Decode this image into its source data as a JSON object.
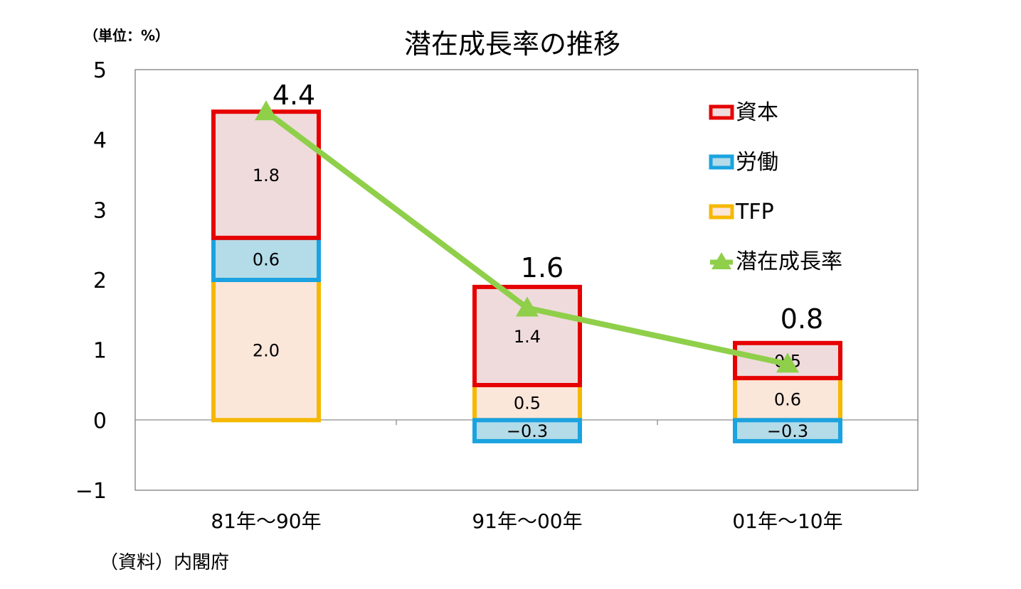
{
  "chart_data": {
    "type": "bar",
    "stacked": true,
    "title": "潜在成長率の推移",
    "unit_label": "（単位：%）",
    "source": "（資料）内閣府",
    "categories": [
      "81年～90年",
      "91年～00年",
      "01年～10年"
    ],
    "yticks": [
      "5",
      "4",
      "3",
      "2",
      "1",
      "0",
      "−1"
    ],
    "ylim": [
      -1,
      5
    ],
    "series": [
      {
        "name": "TFP",
        "values": [
          2.0,
          0.5,
          0.6
        ],
        "labels": [
          "2.0",
          "0.5",
          "0.6"
        ],
        "edge": "#f5b800",
        "fill": "#fbe6da"
      },
      {
        "name": "労働",
        "values": [
          0.6,
          -0.3,
          -0.3
        ],
        "labels": [
          "0.6",
          "−0.3",
          "−0.3"
        ],
        "edge": "#1aa3e0",
        "fill": "#b3dbe8"
      },
      {
        "name": "資本",
        "values": [
          1.8,
          1.4,
          0.5
        ],
        "labels": [
          "1.8",
          "1.4",
          "0.5"
        ],
        "edge": "#e60000",
        "fill": "#efdbdc"
      },
      {
        "name": "潜在成長率",
        "type": "line",
        "values": [
          4.4,
          1.6,
          0.8
        ],
        "labels": [
          "4.4",
          "1.6",
          "0.8"
        ],
        "color": "#8fcf4a"
      }
    ],
    "legend_order": [
      "資本",
      "労働",
      "TFP",
      "潜在成長率"
    ],
    "legend_position": "top-right",
    "grid": false,
    "negative_tick_color": "#e60000"
  }
}
